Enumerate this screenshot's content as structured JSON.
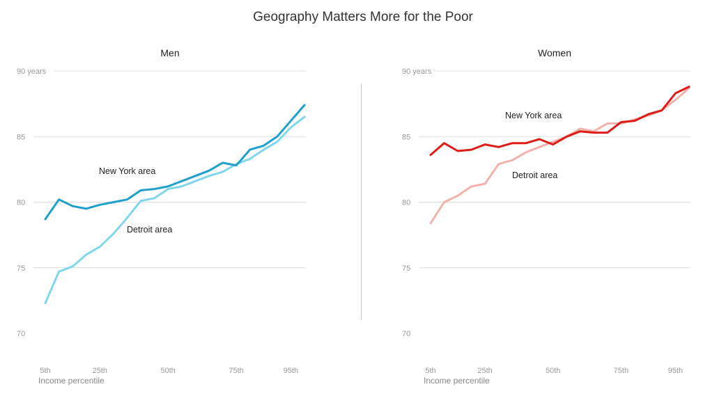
{
  "title": "Geography Matters More for the Poor",
  "chart_data": [
    {
      "type": "line",
      "title": "Men",
      "xlabel": "Income percentile",
      "x_ticks": [
        "5th",
        "25th",
        "50th",
        "75th",
        "95th"
      ],
      "y_ticks": [
        "90 years",
        "85",
        "80",
        "75",
        "70"
      ],
      "ylim": [
        70,
        90
      ],
      "xlim": [
        5,
        100
      ],
      "x": [
        5,
        10,
        15,
        20,
        25,
        30,
        35,
        40,
        45,
        50,
        55,
        60,
        65,
        70,
        75,
        80,
        85,
        90,
        95,
        100
      ],
      "series": [
        {
          "name": "Detroit area",
          "color": "#7fd6ec",
          "values": [
            72.3,
            74.7,
            75.1,
            76.0,
            76.6,
            77.6,
            78.8,
            80.1,
            80.3,
            81.0,
            81.2,
            81.6,
            82.0,
            82.3,
            82.9,
            83.3,
            84.0,
            84.6,
            85.7,
            86.5
          ]
        },
        {
          "name": "New York area",
          "color": "#1f9fcc",
          "values": [
            78.7,
            80.2,
            79.7,
            79.5,
            79.8,
            80.0,
            80.2,
            80.9,
            81.0,
            81.2,
            81.6,
            82.0,
            82.4,
            83.0,
            82.8,
            84.0,
            84.3,
            85.0,
            86.2,
            87.4
          ]
        }
      ]
    },
    {
      "type": "line",
      "title": "Women",
      "xlabel": "Income percentile",
      "x_ticks": [
        "5th",
        "25th",
        "50th",
        "75th",
        "95th"
      ],
      "y_ticks": [
        "90 years",
        "85",
        "80",
        "75",
        "70"
      ],
      "ylim": [
        70,
        90
      ],
      "xlim": [
        5,
        100
      ],
      "x": [
        5,
        10,
        15,
        20,
        25,
        30,
        35,
        40,
        45,
        50,
        55,
        60,
        65,
        70,
        75,
        80,
        85,
        90,
        95,
        100
      ],
      "series": [
        {
          "name": "Detroit area",
          "color": "#f2b1ab",
          "values": [
            78.4,
            80.0,
            80.5,
            81.2,
            81.4,
            82.9,
            83.2,
            83.8,
            84.2,
            84.6,
            85.0,
            85.6,
            85.4,
            86.0,
            86.0,
            86.3,
            86.6,
            87.0,
            87.8,
            88.7
          ]
        },
        {
          "name": "New York area",
          "color": "#e01b17",
          "values": [
            83.6,
            84.5,
            83.9,
            84.0,
            84.4,
            84.2,
            84.5,
            84.5,
            84.8,
            84.4,
            85.0,
            85.4,
            85.3,
            85.3,
            86.1,
            86.2,
            86.7,
            87.0,
            88.3,
            88.8
          ]
        }
      ]
    }
  ]
}
